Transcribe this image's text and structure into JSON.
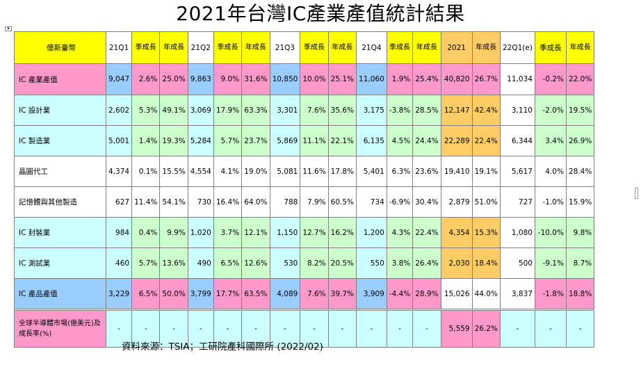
{
  "title": "2021年台灣IC產業產值統計結果",
  "source": "資料來源：TSIA；工研院產科國際所 (2022/02)",
  "colors": {
    "yellow": "#ffff00",
    "pink": "#ff99cc",
    "cyan": "#ccffff",
    "blue": "#99ccff",
    "green": "#ccffcc",
    "orange": "#ffcc66",
    "white": "#ffffff"
  },
  "columns": [
    "億新臺幣",
    "21Q1",
    "季成長",
    "年成長",
    "21Q2",
    "季成長",
    "年成長",
    "21Q3",
    "季成長",
    "年成長",
    "21Q4",
    "季成長",
    "年成長",
    "2021",
    "年成長",
    "22Q1(e)",
    "季成長",
    "年成長"
  ],
  "rows": [
    {
      "label": "IC 產業產值",
      "cells": [
        "9,047",
        "2.6%",
        "25.0%",
        "9,863",
        "9.0%",
        "31.6%",
        "10,850",
        "10.0%",
        "25.1%",
        "11,060",
        "1.9%",
        "25.4%",
        "40,820",
        "26.7%",
        "11,034",
        "-0.2%",
        "22.0%"
      ]
    },
    {
      "label": "IC 設計業",
      "cells": [
        "2,602",
        "5.3%",
        "49.1%",
        "3,069",
        "17.9%",
        "63.3%",
        "3,301",
        "7.6%",
        "35.6%",
        "3,175",
        "-3.8%",
        "28.5%",
        "12,147",
        "42.4%",
        "3,110",
        "-2.0%",
        "19.5%"
      ]
    },
    {
      "label": "IC 製造業",
      "cells": [
        "5,001",
        "1.4%",
        "19.3%",
        "5,284",
        "5.7%",
        "23.7%",
        "5,869",
        "11.1%",
        "22.1%",
        "6,135",
        "4.5%",
        "24.4%",
        "22,289",
        "22.4%",
        "6,344",
        "3.4%",
        "26.9%"
      ]
    },
    {
      "label": "晶圓代工",
      "cells": [
        "4,374",
        "0.1%",
        "15.5%",
        "4,554",
        "4.1%",
        "19.0%",
        "5,081",
        "11.6%",
        "17.8%",
        "5,401",
        "6.3%",
        "23.6%",
        "19,410",
        "19.1%",
        "5,617",
        "4.0%",
        "28.4%"
      ]
    },
    {
      "label": "記憶體與其他製造",
      "cells": [
        "627",
        "11.4%",
        "54.1%",
        "730",
        "16.4%",
        "64.0%",
        "788",
        "7.9%",
        "60.5%",
        "734",
        "-6.9%",
        "30.4%",
        "2,879",
        "51.0%",
        "727",
        "-1.0%",
        "15.9%"
      ]
    },
    {
      "label": "IC 封裝業",
      "cells": [
        "984",
        "0.4%",
        "9.9%",
        "1,020",
        "3.7%",
        "12.1%",
        "1,150",
        "12.7%",
        "16.2%",
        "1,200",
        "4.3%",
        "22.4%",
        "4,354",
        "15.3%",
        "1,080",
        "-10.0%",
        "9.8%"
      ]
    },
    {
      "label": "IC 測試業",
      "cells": [
        "460",
        "5.7%",
        "13.6%",
        "490",
        "6.5%",
        "12.6%",
        "530",
        "8.2%",
        "20.5%",
        "550",
        "3.8%",
        "26.4%",
        "2,030",
        "18.4%",
        "500",
        "-9.1%",
        "8.7%"
      ]
    },
    {
      "label": "IC 產品產值",
      "cells": [
        "3,229",
        "6.5%",
        "50.0%",
        "3,799",
        "17.7%",
        "63.5%",
        "4,089",
        "7.6%",
        "39.7%",
        "3,909",
        "-4.4%",
        "28.9%",
        "15,026",
        "44.0%",
        "3,837",
        "-1.8%",
        "18.8%"
      ]
    },
    {
      "label": "全球半導體市場(億美元)及成長率(%)",
      "cells": [
        "-",
        "-",
        "-",
        "-",
        "-",
        "-",
        "-",
        "-",
        "-",
        "-",
        "-",
        "-",
        "5,559",
        "26.2%",
        "-",
        "-",
        "-"
      ]
    }
  ]
}
